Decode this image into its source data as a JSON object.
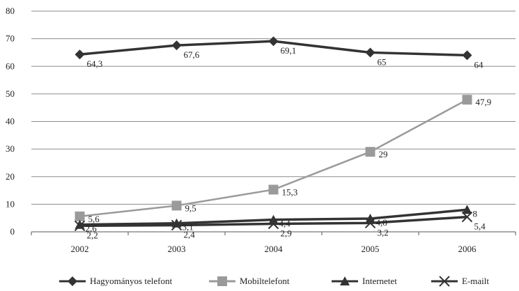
{
  "chart_data": {
    "type": "line",
    "categories": [
      "2002",
      "2003",
      "2004",
      "2005",
      "2006"
    ],
    "ylim": [
      0,
      80
    ],
    "yticks": [
      0,
      10,
      20,
      30,
      40,
      50,
      60,
      70,
      80
    ],
    "grid": true,
    "legend_position": "bottom",
    "series": [
      {
        "name": "Hagyományos telefont",
        "values": [
          64.3,
          67.6,
          69.1,
          65,
          64
        ],
        "labels": [
          "64,3",
          "67,6",
          "69,1",
          "65",
          "64"
        ],
        "color": "#333333",
        "marker": "diamond"
      },
      {
        "name": "Mobiltelefont",
        "values": [
          5.6,
          9.5,
          15.3,
          29,
          47.9
        ],
        "labels": [
          "5,6",
          "9,5",
          "15,3",
          "29",
          "47,9"
        ],
        "color": "#9a9a9a",
        "marker": "square"
      },
      {
        "name": "Internetet",
        "values": [
          2.6,
          3.1,
          4.4,
          4.8,
          8
        ],
        "labels": [
          "2,6",
          "3,1",
          "4,4",
          "4,8",
          "8"
        ],
        "color": "#333333",
        "marker": "triangle"
      },
      {
        "name": "E-mailt",
        "values": [
          2.2,
          2.4,
          2.9,
          3.2,
          5.4
        ],
        "labels": [
          "2,2",
          "2,4",
          "2,9",
          "3,2",
          "5,4"
        ],
        "color": "#333333",
        "marker": "x"
      }
    ]
  }
}
